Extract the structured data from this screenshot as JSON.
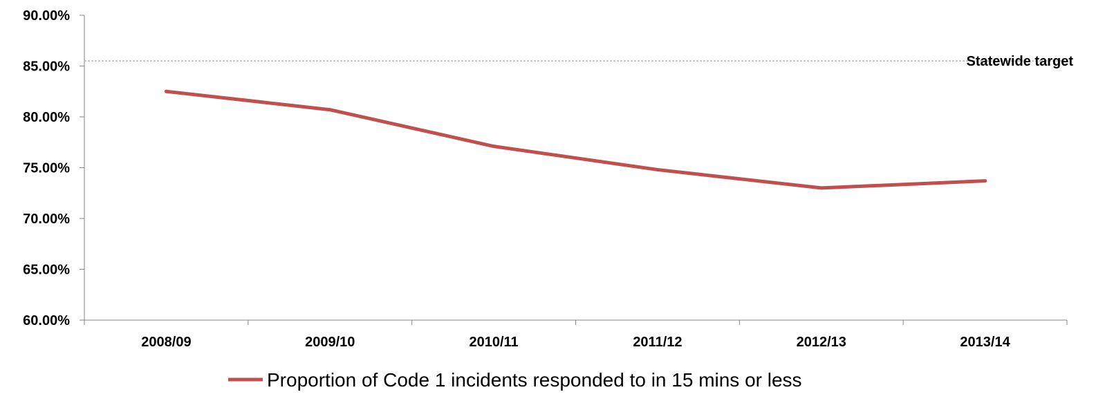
{
  "chart_data": {
    "type": "line",
    "title": "",
    "xlabel": "",
    "ylabel": "",
    "categories": [
      "2008/09",
      "2009/10",
      "2010/11",
      "2011/12",
      "2012/13",
      "2013/14"
    ],
    "series": [
      {
        "name": "Proportion of Code 1 incidents responded to in 15 mins or less",
        "values": [
          82.5,
          80.7,
          77.1,
          74.8,
          73.0,
          73.7
        ],
        "color": "#C0504D"
      }
    ],
    "ylim": [
      60,
      90
    ],
    "yticks": [
      "60.00%",
      "65.00%",
      "70.00%",
      "75.00%",
      "80.00%",
      "85.00%",
      "90.00%"
    ],
    "ytick_values": [
      60,
      65,
      70,
      75,
      80,
      85,
      90
    ],
    "reference_line": {
      "label": "Statewide target",
      "value": 85.5,
      "style": "dashed",
      "color": "#A6A6A6"
    },
    "grid": false,
    "legend_position": "bottom"
  }
}
